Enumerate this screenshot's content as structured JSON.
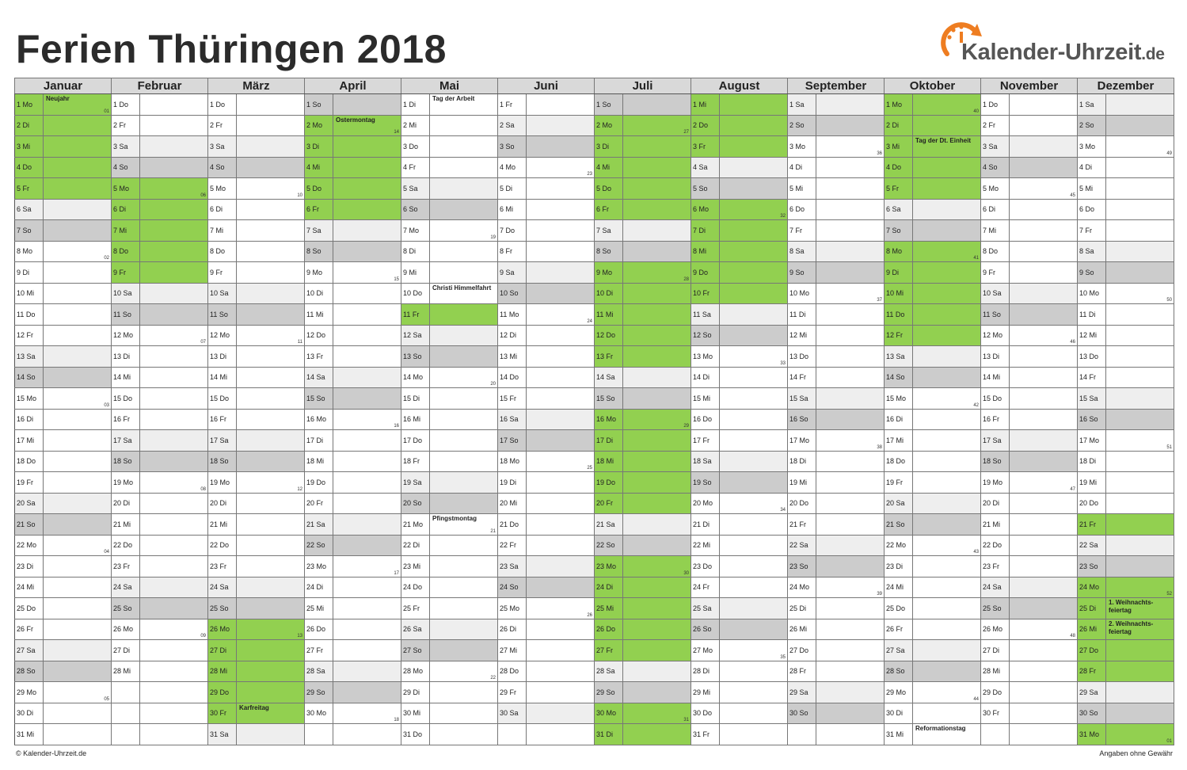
{
  "title": "Ferien Thüringen 2018",
  "logo": {
    "name": "Kalender-Uhrzeit",
    "tld": ".de",
    "accent": "#ee7d21"
  },
  "colors": {
    "holiday": "#92d050",
    "saturday": "#eeeeee",
    "sunday": "#cccccc",
    "header": "#d9d9d9"
  },
  "footer": {
    "copyright": "Kalender-Uhrzeit.de",
    "disclaimer": "Angaben ohne Gewähr"
  },
  "months": [
    {
      "name": "Januar",
      "days": [
        "1 Mo",
        "2 Di",
        "3 Mi",
        "4 Do",
        "5 Fr",
        "6 Sa",
        "7 So",
        "8 Mo",
        "9 Di",
        "10 Mi",
        "11 Do",
        "12 Fr",
        "13 Sa",
        "14 So",
        "15 Mo",
        "16 Di",
        "17 Mi",
        "18 Do",
        "19 Fr",
        "20 Sa",
        "21 So",
        "22 Mo",
        "23 Di",
        "24 Mi",
        "25 Do",
        "26 Fr",
        "27 Sa",
        "28 So",
        "29 Mo",
        "30 Di",
        "31 Mi"
      ],
      "holidays": [
        1,
        2,
        3,
        4,
        5
      ],
      "notes": {
        "1": "Neujahr"
      },
      "weeks": {
        "1": "01",
        "8": "02",
        "15": "03",
        "22": "04",
        "29": "05"
      }
    },
    {
      "name": "Februar",
      "days": [
        "1 Do",
        "2 Fr",
        "3 Sa",
        "4 So",
        "5 Mo",
        "6 Di",
        "7 Mi",
        "8 Do",
        "9 Fr",
        "10 Sa",
        "11 So",
        "12 Mo",
        "13 Di",
        "14 Mi",
        "15 Do",
        "16 Fr",
        "17 Sa",
        "18 So",
        "19 Mo",
        "20 Di",
        "21 Mi",
        "22 Do",
        "23 Fr",
        "24 Sa",
        "25 So",
        "26 Mo",
        "27 Di",
        "28 Mi"
      ],
      "holidays": [
        5,
        6,
        7,
        8,
        9
      ],
      "notes": {},
      "weeks": {
        "5": "06",
        "12": "07",
        "19": "08",
        "26": "09"
      }
    },
    {
      "name": "März",
      "days": [
        "1 Do",
        "2 Fr",
        "3 Sa",
        "4 So",
        "5 Mo",
        "6 Di",
        "7 Mi",
        "8 Do",
        "9 Fr",
        "10 Sa",
        "11 So",
        "12 Mo",
        "13 Di",
        "14 Mi",
        "15 Do",
        "16 Fr",
        "17 Sa",
        "18 So",
        "19 Mo",
        "20 Di",
        "21 Mi",
        "22 Do",
        "23 Fr",
        "24 Sa",
        "25 So",
        "26 Mo",
        "27 Di",
        "28 Mi",
        "29 Do",
        "30 Fr",
        "31 Sa"
      ],
      "holidays": [
        26,
        27,
        28,
        29,
        30
      ],
      "notes": {
        "30": "Karfreitag"
      },
      "weeks": {
        "5": "10",
        "12": "11",
        "19": "12",
        "26": "13"
      }
    },
    {
      "name": "April",
      "days": [
        "1 So",
        "2 Mo",
        "3 Di",
        "4 Mi",
        "5 Do",
        "6 Fr",
        "7 Sa",
        "8 So",
        "9 Mo",
        "10 Di",
        "11 Mi",
        "12 Do",
        "13 Fr",
        "14 Sa",
        "15 So",
        "16 Mo",
        "17 Di",
        "18 Mi",
        "19 Do",
        "20 Fr",
        "21 Sa",
        "22 So",
        "23 Mo",
        "24 Di",
        "25 Mi",
        "26 Do",
        "27 Fr",
        "28 Sa",
        "29 So",
        "30 Mo"
      ],
      "holidays": [
        2,
        3,
        4,
        5,
        6
      ],
      "notes": {
        "2": "Ostermontag"
      },
      "weeks": {
        "2": "14",
        "9": "15",
        "16": "16",
        "23": "17",
        "30": "18"
      }
    },
    {
      "name": "Mai",
      "days": [
        "1 Di",
        "2 Mi",
        "3 Do",
        "4 Fr",
        "5 Sa",
        "6 So",
        "7 Mo",
        "8 Di",
        "9 Mi",
        "10 Do",
        "11 Fr",
        "12 Sa",
        "13 So",
        "14 Mo",
        "15 Di",
        "16 Mi",
        "17 Do",
        "18 Fr",
        "19 Sa",
        "20 So",
        "21 Mo",
        "22 Di",
        "23 Mi",
        "24 Do",
        "25 Fr",
        "26 Sa",
        "27 So",
        "28 Mo",
        "29 Di",
        "30 Mi",
        "31 Do"
      ],
      "holidays": [
        11
      ],
      "notes": {
        "1": "Tag der Arbeit",
        "10": "Christi Himmelfahrt",
        "21": "Pfingstmontag"
      },
      "weeks": {
        "7": "19",
        "14": "20",
        "21": "21",
        "28": "22"
      }
    },
    {
      "name": "Juni",
      "days": [
        "1 Fr",
        "2 Sa",
        "3 So",
        "4 Mo",
        "5 Di",
        "6 Mi",
        "7 Do",
        "8 Fr",
        "9 Sa",
        "10 So",
        "11 Mo",
        "12 Di",
        "13 Mi",
        "14 Do",
        "15 Fr",
        "16 Sa",
        "17 So",
        "18 Mo",
        "19 Di",
        "20 Mi",
        "21 Do",
        "22 Fr",
        "23 Sa",
        "24 So",
        "25 Mo",
        "26 Di",
        "27 Mi",
        "28 Do",
        "29 Fr",
        "30 Sa"
      ],
      "holidays": [],
      "notes": {},
      "weeks": {
        "4": "23",
        "11": "24",
        "18": "25",
        "25": "26"
      }
    },
    {
      "name": "Juli",
      "days": [
        "1 So",
        "2 Mo",
        "3 Di",
        "4 Mi",
        "5 Do",
        "6 Fr",
        "7 Sa",
        "8 So",
        "9 Mo",
        "10 Di",
        "11 Mi",
        "12 Do",
        "13 Fr",
        "14 Sa",
        "15 So",
        "16 Mo",
        "17 Di",
        "18 Mi",
        "19 Do",
        "20 Fr",
        "21 Sa",
        "22 So",
        "23 Mo",
        "24 Di",
        "25 Mi",
        "26 Do",
        "27 Fr",
        "28 Sa",
        "29 So",
        "30 Mo",
        "31 Di"
      ],
      "holidays": [
        2,
        3,
        4,
        5,
        6,
        9,
        10,
        11,
        12,
        13,
        16,
        17,
        18,
        19,
        20,
        23,
        24,
        25,
        26,
        27,
        30,
        31
      ],
      "notes": {},
      "weeks": {
        "2": "27",
        "9": "28",
        "16": "29",
        "23": "30",
        "30": "31"
      }
    },
    {
      "name": "August",
      "days": [
        "1 Mi",
        "2 Do",
        "3 Fr",
        "4 Sa",
        "5 So",
        "6 Mo",
        "7 Di",
        "8 Mi",
        "9 Do",
        "10 Fr",
        "11 Sa",
        "12 So",
        "13 Mo",
        "14 Di",
        "15 Mi",
        "16 Do",
        "17 Fr",
        "18 Sa",
        "19 So",
        "20 Mo",
        "21 Di",
        "22 Mi",
        "23 Do",
        "24 Fr",
        "25 Sa",
        "26 So",
        "27 Mo",
        "28 Di",
        "29 Mi",
        "30 Do",
        "31 Fr"
      ],
      "holidays": [
        1,
        2,
        3,
        6,
        7,
        8,
        9,
        10
      ],
      "notes": {},
      "weeks": {
        "6": "32",
        "13": "33",
        "20": "34",
        "27": "35"
      }
    },
    {
      "name": "September",
      "days": [
        "1 Sa",
        "2 So",
        "3 Mo",
        "4 Di",
        "5 Mi",
        "6 Do",
        "7 Fr",
        "8 Sa",
        "9 So",
        "10 Mo",
        "11 Di",
        "12 Mi",
        "13 Do",
        "14 Fr",
        "15 Sa",
        "16 So",
        "17 Mo",
        "18 Di",
        "19 Mi",
        "20 Do",
        "21 Fr",
        "22 Sa",
        "23 So",
        "24 Mo",
        "25 Di",
        "26 Mi",
        "27 Do",
        "28 Fr",
        "29 Sa",
        "30 So"
      ],
      "holidays": [],
      "notes": {},
      "weeks": {
        "3": "36",
        "10": "37",
        "17": "38",
        "24": "39"
      }
    },
    {
      "name": "Oktober",
      "days": [
        "1 Mo",
        "2 Di",
        "3 Mi",
        "4 Do",
        "5 Fr",
        "6 Sa",
        "7 So",
        "8 Mo",
        "9 Di",
        "10 Mi",
        "11 Do",
        "12 Fr",
        "13 Sa",
        "14 So",
        "15 Mo",
        "16 Di",
        "17 Mi",
        "18 Do",
        "19 Fr",
        "20 Sa",
        "21 So",
        "22 Mo",
        "23 Di",
        "24 Mi",
        "25 Do",
        "26 Fr",
        "27 Sa",
        "28 So",
        "29 Mo",
        "30 Di",
        "31 Mi"
      ],
      "holidays": [
        1,
        2,
        3,
        4,
        5,
        8,
        9,
        10,
        11,
        12
      ],
      "notes": {
        "3": "Tag der Dt. Einheit",
        "31": "Reformationstag"
      },
      "weeks": {
        "1": "40",
        "8": "41",
        "15": "42",
        "22": "43",
        "29": "44"
      }
    },
    {
      "name": "November",
      "days": [
        "1 Do",
        "2 Fr",
        "3 Sa",
        "4 So",
        "5 Mo",
        "6 Di",
        "7 Mi",
        "8 Do",
        "9 Fr",
        "10 Sa",
        "11 So",
        "12 Mo",
        "13 Di",
        "14 Mi",
        "15 Do",
        "16 Fr",
        "17 Sa",
        "18 So",
        "19 Mo",
        "20 Di",
        "21 Mi",
        "22 Do",
        "23 Fr",
        "24 Sa",
        "25 So",
        "26 Mo",
        "27 Di",
        "28 Mi",
        "29 Do",
        "30 Fr"
      ],
      "holidays": [],
      "notes": {},
      "weeks": {
        "5": "45",
        "12": "46",
        "19": "47",
        "26": "48"
      }
    },
    {
      "name": "Dezember",
      "days": [
        "1 Sa",
        "2 So",
        "3 Mo",
        "4 Di",
        "5 Mi",
        "6 Do",
        "7 Fr",
        "8 Sa",
        "9 So",
        "10 Mo",
        "11 Di",
        "12 Mi",
        "13 Do",
        "14 Fr",
        "15 Sa",
        "16 So",
        "17 Mo",
        "18 Di",
        "19 Mi",
        "20 Do",
        "21 Fr",
        "22 Sa",
        "23 So",
        "24 Mo",
        "25 Di",
        "26 Mi",
        "27 Do",
        "28 Fr",
        "29 Sa",
        "30 So",
        "31 Mo"
      ],
      "holidays": [
        21,
        24,
        25,
        26,
        27,
        28,
        31
      ],
      "notes": {
        "25": "1. Weihnachts-feiertag",
        "26": "2. Weihnachts-feiertag"
      },
      "weeks": {
        "3": "49",
        "10": "50",
        "17": "51",
        "24": "52",
        "31": "01"
      }
    }
  ]
}
